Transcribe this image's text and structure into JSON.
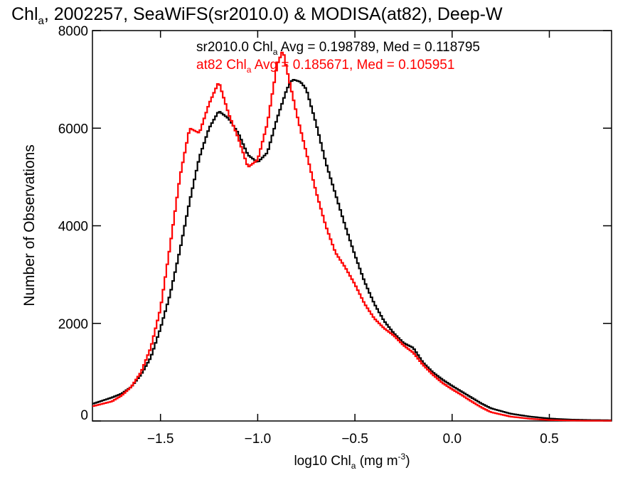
{
  "chart_data": {
    "type": "line",
    "title": {
      "main": "Chl",
      "sub": "a",
      "rest": ", 2002257, SeaWiFS(sr2010.0) & MODISA(at82), Deep-W"
    },
    "xlabel": {
      "pre": "log10 Chl",
      "sub": "a",
      "mid": " (mg m",
      "sup": "-3",
      "post": ")"
    },
    "ylabel": "Number of Observations",
    "xlim": [
      -1.85,
      0.82
    ],
    "ylim": [
      0,
      8000
    ],
    "x_ticks": [
      -1.5,
      -1.0,
      -0.5,
      0.0,
      0.5
    ],
    "x_tick_labels": [
      "−1.5",
      "−1.0",
      "−0.5",
      "0.0",
      "0.5"
    ],
    "y_ticks": [
      0,
      2000,
      4000,
      6000,
      8000
    ],
    "y_tick_labels": [
      "0",
      "2000",
      "4000",
      "6000",
      "8000"
    ],
    "grid": false,
    "annotations": [
      {
        "pre": "sr2010.0 Chl",
        "sub": "a",
        "post": " Avg = 0.198789, Med = 0.118795",
        "color": "#000000"
      },
      {
        "pre": "at82 Chl",
        "sub": "a",
        "post": " Avg = 0.185671, Med = 0.105951",
        "color": "#ff0000"
      }
    ],
    "series": [
      {
        "color": "#000000",
        "x": [
          -1.85,
          -1.75,
          -1.7,
          -1.65,
          -1.6,
          -1.55,
          -1.5,
          -1.45,
          -1.4,
          -1.35,
          -1.3,
          -1.25,
          -1.2,
          -1.15,
          -1.1,
          -1.05,
          -1.0,
          -0.95,
          -0.9,
          -0.85,
          -0.82,
          -0.78,
          -0.75,
          -0.7,
          -0.65,
          -0.6,
          -0.55,
          -0.5,
          -0.45,
          -0.4,
          -0.35,
          -0.3,
          -0.25,
          -0.2,
          -0.15,
          -0.1,
          -0.05,
          0.0,
          0.05,
          0.1,
          0.15,
          0.2,
          0.3,
          0.4,
          0.5,
          0.6,
          0.7,
          0.82
        ],
        "y": [
          350,
          480,
          560,
          700,
          950,
          1300,
          1900,
          2600,
          3500,
          4500,
          5400,
          6000,
          6350,
          6200,
          5900,
          5450,
          5300,
          5500,
          6200,
          6800,
          7000,
          6950,
          6800,
          6100,
          5300,
          4650,
          4000,
          3400,
          2850,
          2400,
          2050,
          1800,
          1600,
          1500,
          1200,
          1000,
          850,
          720,
          600,
          480,
          360,
          260,
          150,
          90,
          50,
          30,
          20,
          15
        ]
      },
      {
        "color": "#ff0000",
        "x": [
          -1.85,
          -1.75,
          -1.7,
          -1.65,
          -1.6,
          -1.55,
          -1.5,
          -1.45,
          -1.4,
          -1.35,
          -1.3,
          -1.25,
          -1.2,
          -1.15,
          -1.1,
          -1.05,
          -1.0,
          -0.95,
          -0.9,
          -0.87,
          -0.85,
          -0.8,
          -0.75,
          -0.7,
          -0.65,
          -0.6,
          -0.55,
          -0.5,
          -0.45,
          -0.4,
          -0.35,
          -0.3,
          -0.25,
          -0.2,
          -0.15,
          -0.1,
          -0.05,
          0.0,
          0.05,
          0.1,
          0.15,
          0.2,
          0.3,
          0.4,
          0.5,
          0.6,
          0.7,
          0.82
        ],
        "y": [
          300,
          400,
          520,
          700,
          1000,
          1500,
          2300,
          3600,
          5000,
          6000,
          5900,
          6500,
          6950,
          6300,
          5800,
          5200,
          5350,
          6100,
          7300,
          7600,
          7200,
          6300,
          5500,
          4700,
          4000,
          3450,
          3150,
          2800,
          2400,
          2100,
          1900,
          1750,
          1550,
          1400,
          1150,
          950,
          780,
          650,
          530,
          400,
          280,
          180,
          90,
          45,
          20,
          10,
          5,
          5
        ]
      }
    ]
  }
}
